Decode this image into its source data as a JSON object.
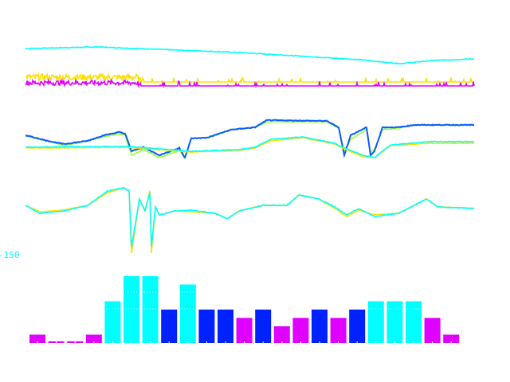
{
  "colors": {
    "cyan": "#00ffff",
    "yellow": "#ffe000",
    "magenta": "#e000ff",
    "blue": "#0a5cff",
    "green": "#99ff33",
    "darkblue": "#0022ff"
  },
  "chart_data": [
    {
      "type": "line",
      "panel": "top",
      "series": [
        {
          "color": "cyan",
          "noise": 1,
          "x": [
            0,
            90,
            270,
            420,
            470,
            510,
            563
          ],
          "y": [
            49,
            51,
            44,
            35,
            30,
            34,
            36
          ]
        },
        {
          "color": "yellow",
          "noise": 5,
          "spikes": true,
          "x": [
            0,
            140,
            145,
            563
          ],
          "y": [
            13,
            13,
            7,
            7
          ]
        },
        {
          "color": "magenta",
          "noise": 4,
          "spikes": true,
          "x": [
            0,
            140,
            145,
            563
          ],
          "y": [
            6,
            6,
            2,
            2
          ]
        }
      ]
    },
    {
      "type": "line",
      "panel": "middle",
      "series": [
        {
          "color": "green",
          "noise": 1,
          "x": [
            0,
            28,
            48,
            78,
            98,
            118,
            125,
            133,
            148,
            168,
            193,
            200,
            208,
            228,
            258,
            288,
            303,
            378,
            393,
            400,
            408,
            428,
            433,
            438,
            448,
            468,
            488,
            563
          ],
          "y": [
            34,
            28,
            22,
            28,
            33,
            37,
            35,
            10,
            17,
            7,
            16,
            6,
            31,
            32,
            42,
            45,
            52,
            52,
            44,
            14,
            30,
            42,
            14,
            17,
            42,
            44,
            48,
            48
          ]
        },
        {
          "color": "blue",
          "noise": 1,
          "x": [
            0,
            28,
            48,
            78,
            98,
            118,
            125,
            133,
            148,
            168,
            193,
            200,
            208,
            228,
            258,
            288,
            303,
            378,
            393,
            400,
            408,
            428,
            433,
            438,
            448,
            468,
            488,
            563
          ],
          "y": [
            35,
            28,
            24,
            28,
            35,
            39,
            37,
            15,
            20,
            10,
            19,
            7,
            31,
            32,
            42,
            45,
            54,
            53,
            45,
            10,
            35,
            45,
            10,
            15,
            45,
            45,
            48,
            48
          ]
        },
        {
          "color": "yellow",
          "noise": 1,
          "x": [
            0,
            128,
            168,
            208,
            268,
            288,
            308,
            348,
            388,
            398,
            423,
            438,
            458,
            508,
            563
          ],
          "y": [
            19,
            20,
            17,
            14,
            16,
            19,
            28,
            32,
            24,
            19,
            8,
            7,
            22,
            25,
            25
          ]
        },
        {
          "color": "cyan",
          "noise": 1,
          "x": [
            0,
            128,
            168,
            208,
            268,
            288,
            308,
            348,
            388,
            398,
            423,
            438,
            458,
            508,
            563
          ],
          "y": [
            20,
            21,
            18,
            15,
            17,
            20,
            30,
            33,
            25,
            20,
            10,
            7,
            23,
            27,
            27
          ]
        }
      ]
    },
    {
      "type": "line",
      "panel": "bottom",
      "series": [
        {
          "color": "yellow",
          "noise": 1,
          "x": [
            0,
            18,
            48,
            78,
            103,
            123,
            130,
            133,
            143,
            150,
            156,
            158,
            163,
            168,
            188,
            208,
            238,
            253,
            268,
            298,
            328,
            343,
            368,
            388,
            403,
            418,
            438,
            468,
            488,
            503,
            518,
            563
          ],
          "y": [
            62,
            54,
            56,
            62,
            78,
            84,
            80,
            2,
            70,
            56,
            80,
            2,
            60,
            50,
            55,
            54,
            52,
            45,
            55,
            62,
            62,
            75,
            70,
            58,
            48,
            56,
            50,
            52,
            62,
            70,
            60,
            58
          ]
        },
        {
          "color": "cyan",
          "noise": 1,
          "x": [
            0,
            18,
            48,
            78,
            103,
            123,
            130,
            133,
            143,
            150,
            156,
            158,
            163,
            168,
            188,
            208,
            238,
            253,
            268,
            298,
            328,
            343,
            368,
            388,
            403,
            418,
            438,
            468,
            488,
            503,
            518,
            563
          ],
          "y": [
            62,
            52,
            55,
            62,
            80,
            84,
            80,
            10,
            70,
            55,
            78,
            10,
            60,
            50,
            55,
            56,
            52,
            45,
            55,
            62,
            62,
            75,
            70,
            60,
            50,
            58,
            48,
            52,
            62,
            70,
            60,
            58
          ]
        }
      ]
    },
    {
      "type": "bar",
      "axis_label": "-150",
      "values": [
        1,
        0.2,
        0.2,
        1,
        5,
        8,
        8,
        4,
        7,
        4,
        4,
        3,
        4,
        2,
        3,
        4,
        3,
        4,
        5,
        5,
        5,
        3,
        1
      ],
      "bar_colors": [
        "magenta",
        "magenta",
        "magenta",
        "magenta",
        "cyan",
        "cyan",
        "cyan",
        "darkblue",
        "cyan",
        "darkblue",
        "darkblue",
        "magenta",
        "darkblue",
        "magenta",
        "magenta",
        "darkblue",
        "magenta",
        "darkblue",
        "cyan",
        "cyan",
        "cyan",
        "magenta",
        "magenta"
      ],
      "ylim": [
        0,
        8
      ]
    }
  ]
}
